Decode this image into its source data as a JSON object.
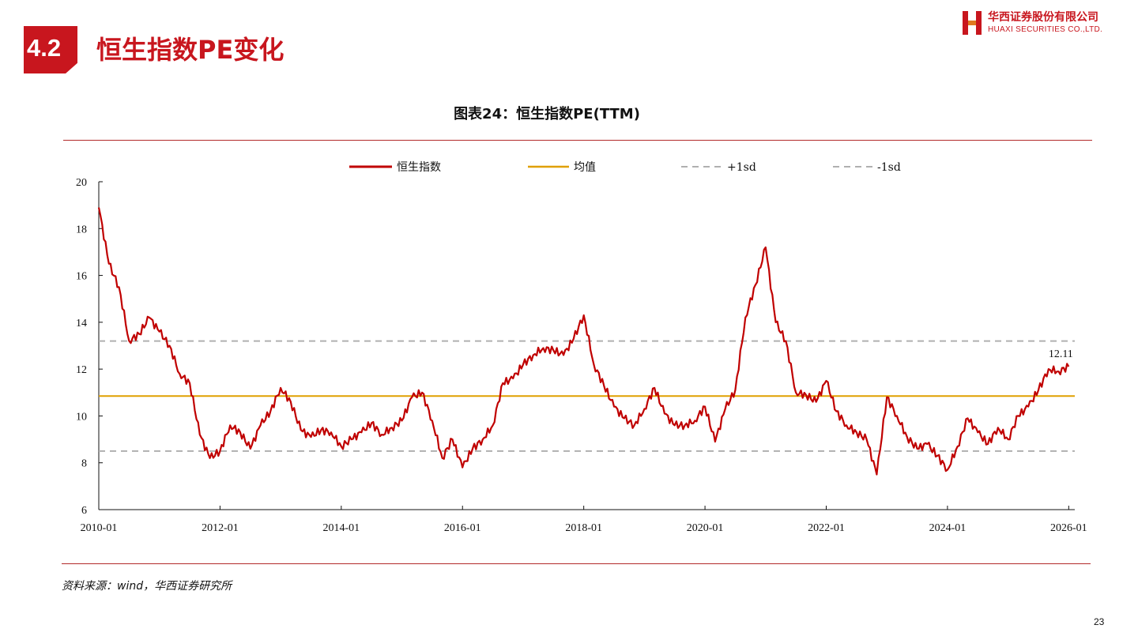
{
  "header": {
    "section_number": "4.2",
    "section_title": "恒生指数PE变化",
    "logo_cn": "华西证券股份有限公司",
    "logo_en": "HUAXI SECURITIES CO.,LTD."
  },
  "chart_title": "图表24：恒生指数PE(TTM)",
  "source": "资料来源：wind，华西证券研究所",
  "page_number": "23",
  "colors": {
    "brand_red": "#c8161e",
    "series_line": "#c00000",
    "mean_line": "#e0a000",
    "sd_line": "#b0b0b0"
  },
  "chart_data": {
    "type": "line",
    "ylim": [
      6,
      20
    ],
    "yticks": [
      "6",
      "8",
      "10",
      "12",
      "14",
      "16",
      "18",
      "20"
    ],
    "xticks": [
      "2010-01",
      "2012-01",
      "2014-01",
      "2016-01",
      "2018-01",
      "2020-01",
      "2022-01",
      "2024-01",
      "2026-01"
    ],
    "legend": [
      "恒生指数",
      "均值",
      "+1sd",
      "-1sd"
    ],
    "last_value_label": "12.11",
    "mean": 10.85,
    "plus_1sd": 13.2,
    "minus_1sd": 8.5,
    "series": [
      {
        "name": "恒生指数",
        "x": [
          "2010-01",
          "2010-03",
          "2010-05",
          "2010-07",
          "2010-09",
          "2010-11",
          "2011-01",
          "2011-03",
          "2011-05",
          "2011-07",
          "2011-09",
          "2011-11",
          "2012-01",
          "2012-03",
          "2012-05",
          "2012-07",
          "2012-09",
          "2012-11",
          "2013-01",
          "2013-03",
          "2013-05",
          "2013-07",
          "2013-09",
          "2013-11",
          "2014-01",
          "2014-03",
          "2014-05",
          "2014-07",
          "2014-09",
          "2014-11",
          "2015-01",
          "2015-03",
          "2015-05",
          "2015-07",
          "2015-09",
          "2015-11",
          "2016-01",
          "2016-03",
          "2016-05",
          "2016-07",
          "2016-09",
          "2016-11",
          "2017-01",
          "2017-03",
          "2017-05",
          "2017-07",
          "2017-09",
          "2017-11",
          "2018-01",
          "2018-03",
          "2018-05",
          "2018-07",
          "2018-09",
          "2018-11",
          "2019-01",
          "2019-03",
          "2019-05",
          "2019-07",
          "2019-09",
          "2019-11",
          "2020-01",
          "2020-03",
          "2020-05",
          "2020-07",
          "2020-09",
          "2020-11",
          "2021-01",
          "2021-03",
          "2021-05",
          "2021-07",
          "2021-09",
          "2021-11",
          "2022-01",
          "2022-03",
          "2022-05",
          "2022-07",
          "2022-09",
          "2022-11",
          "2023-01",
          "2023-03",
          "2023-05",
          "2023-07",
          "2023-09",
          "2023-11",
          "2024-01",
          "2024-03",
          "2024-05",
          "2024-07",
          "2024-09",
          "2024-11",
          "2025-01",
          "2025-03",
          "2025-05",
          "2025-07",
          "2025-09",
          "2025-11",
          "2026-01"
        ],
        "values": [
          18.9,
          16.5,
          15.5,
          13.2,
          13.5,
          14.2,
          13.6,
          13.0,
          11.8,
          11.4,
          9.2,
          8.2,
          8.5,
          9.6,
          9.3,
          8.6,
          9.6,
          10.2,
          11.2,
          10.6,
          9.4,
          9.1,
          9.4,
          9.3,
          8.7,
          9.0,
          9.3,
          9.7,
          9.2,
          9.5,
          9.8,
          10.8,
          11.0,
          9.8,
          8.2,
          9.0,
          7.8,
          8.6,
          9.0,
          9.6,
          11.4,
          11.6,
          12.2,
          12.6,
          12.9,
          12.8,
          12.6,
          13.3,
          14.3,
          12.2,
          11.3,
          10.4,
          9.9,
          9.6,
          10.3,
          11.2,
          10.1,
          9.6,
          9.6,
          9.8,
          10.4,
          8.9,
          10.3,
          11.1,
          14.2,
          15.6,
          17.2,
          14.0,
          13.2,
          11.0,
          10.9,
          10.6,
          11.5,
          10.2,
          9.6,
          9.3,
          9.0,
          7.5,
          10.8,
          10.0,
          9.1,
          8.6,
          8.8,
          8.3,
          7.7,
          8.7,
          9.9,
          9.3,
          8.8,
          9.5,
          9.0,
          10.0,
          10.4,
          11.1,
          12.0,
          11.9,
          12.11
        ]
      }
    ]
  }
}
